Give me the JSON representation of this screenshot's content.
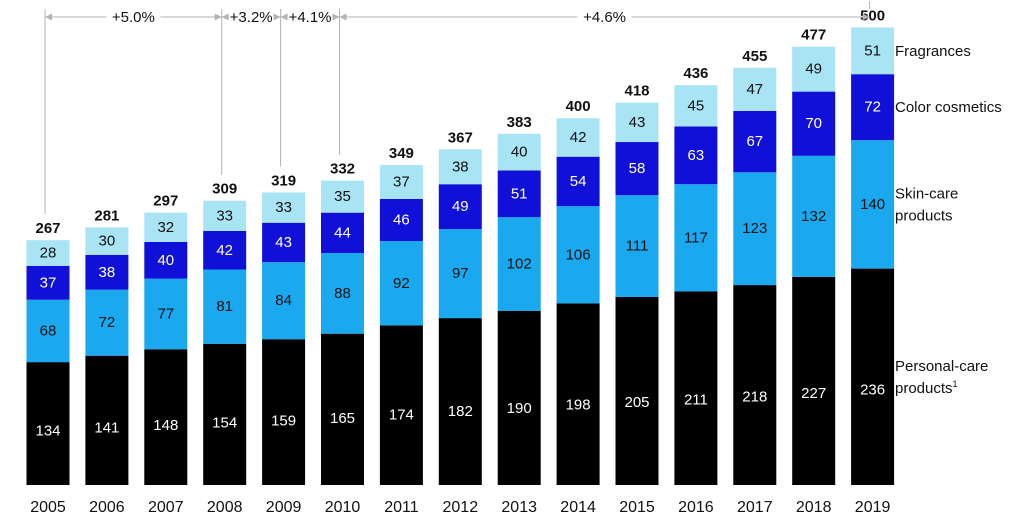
{
  "chart_data": {
    "type": "bar",
    "stacked": true,
    "categories": [
      "2005",
      "2006",
      "2007",
      "2008",
      "2009",
      "2010",
      "2011",
      "2012",
      "2013",
      "2014",
      "2015",
      "2016",
      "2017",
      "2018",
      "2019"
    ],
    "totals": [
      267,
      281,
      297,
      309,
      319,
      332,
      349,
      367,
      383,
      400,
      418,
      436,
      455,
      477,
      500
    ],
    "series": [
      {
        "name": "Personal-care products",
        "footnote": "1",
        "color": "#000000",
        "text_color": "#ffffff",
        "values": [
          134,
          141,
          148,
          154,
          159,
          165,
          174,
          182,
          190,
          198,
          205,
          211,
          218,
          227,
          236
        ]
      },
      {
        "name": "Skin-care products",
        "color": "#1aa8ef",
        "text_color": "#111111",
        "values": [
          68,
          72,
          77,
          81,
          84,
          88,
          92,
          97,
          102,
          106,
          111,
          117,
          123,
          132,
          140
        ]
      },
      {
        "name": "Color cosmetics",
        "color": "#1010d8",
        "text_color": "#ffffff",
        "values": [
          37,
          38,
          40,
          42,
          43,
          44,
          46,
          49,
          51,
          54,
          58,
          63,
          67,
          70,
          72
        ]
      },
      {
        "name": "Fragrances",
        "color": "#a9e4f5",
        "text_color": "#111111",
        "values": [
          28,
          30,
          32,
          33,
          33,
          35,
          37,
          38,
          40,
          42,
          43,
          45,
          47,
          49,
          51
        ]
      }
    ],
    "growth_annotations": [
      {
        "label": "+5.0%",
        "from": "2005",
        "to": "2008"
      },
      {
        "label": "+3.2%",
        "from": "2008",
        "to": "2009"
      },
      {
        "label": "+4.1%",
        "from": "2009",
        "to": "2010"
      },
      {
        "label": "+4.6%",
        "from": "2010",
        "to": "2019"
      }
    ],
    "legend_position": "right",
    "grid": false,
    "title": "",
    "xlabel": "",
    "ylabel": ""
  }
}
